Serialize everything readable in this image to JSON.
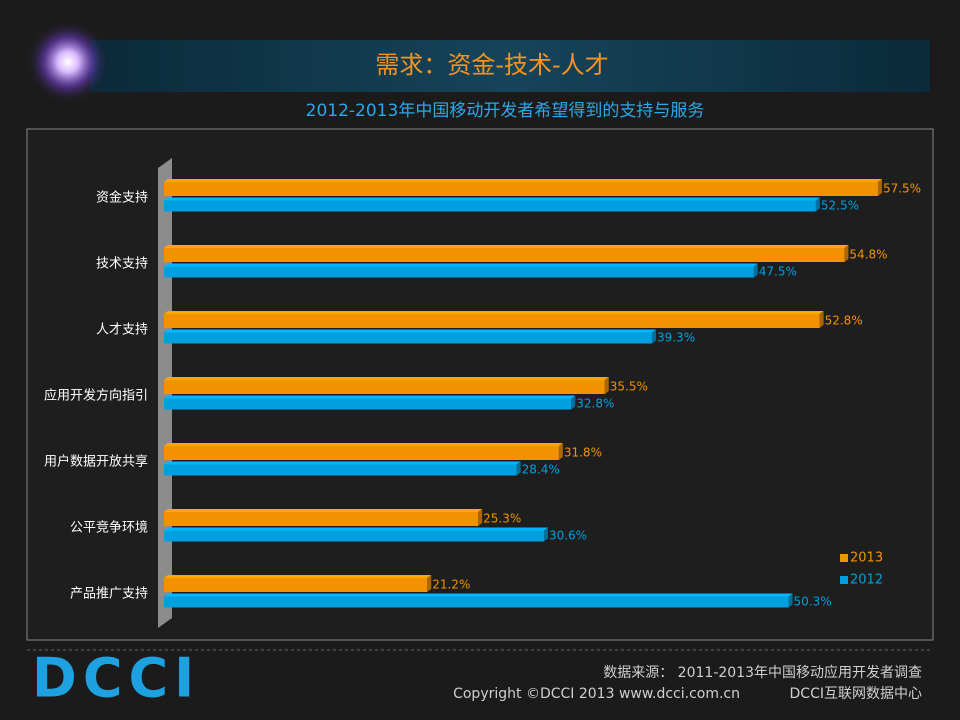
{
  "header": {
    "title": "需求：资金-技术-人才"
  },
  "chart_data": {
    "type": "bar",
    "orientation": "horizontal",
    "title": "2012-2013年中国移动开发者希望得到的支持与服务",
    "categories": [
      "资金支持",
      "技术支持",
      "人才支持",
      "应用开发方向指引",
      "用户数据开放共享",
      "公平竞争环境",
      "产品推广支持"
    ],
    "series": [
      {
        "name": "2013",
        "color": "#f39200",
        "values": [
          57.5,
          54.8,
          52.8,
          35.5,
          31.8,
          25.3,
          21.2
        ],
        "value_labels": [
          "57.5%",
          "54.8%",
          "52.8%",
          "35.5%",
          "31.8%",
          "25.3%",
          "21.2%"
        ]
      },
      {
        "name": "2012",
        "color": "#00a0e0",
        "values": [
          52.5,
          47.5,
          39.3,
          32.8,
          28.4,
          30.6,
          50.3
        ],
        "value_labels": [
          "52.5%",
          "47.5%",
          "39.3%",
          "32.8%",
          "28.4%",
          "30.6%",
          "50.3%"
        ]
      }
    ],
    "xlim": [
      0,
      60
    ],
    "legend": "bottom-right"
  },
  "footer": {
    "logo": "DCCI",
    "source": "数据来源： 2011-2013年中国移动应用开发者调查",
    "copyright": "Copyright ©DCCI 2013 www.dcci.com.cn",
    "org": "DCCI互联网数据中心"
  }
}
